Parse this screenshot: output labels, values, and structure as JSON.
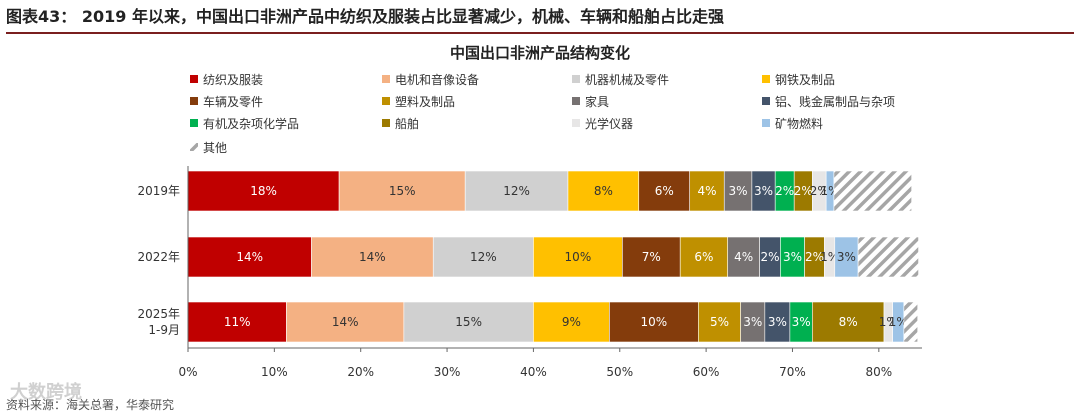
{
  "header": {
    "title": "图表43：  2019 年以来，中国出口非洲产品中纺织及服装占比显著减少，机械、车辆和船舶占比走强",
    "source": "资料来源：海关总署，华泰研究",
    "watermark": "大数跨境"
  },
  "chart_data": {
    "type": "bar",
    "orientation": "horizontal",
    "stacked": true,
    "title": "中国出口非洲产品结构变化",
    "categories": [
      "2019年",
      "2022年",
      "2025年 1-9月"
    ],
    "category_lines": [
      [
        "2019年"
      ],
      [
        "2022年"
      ],
      [
        "2025年",
        "1-9月"
      ]
    ],
    "xlim": [
      0,
      85
    ],
    "xticks": [
      0,
      10,
      20,
      30,
      40,
      50,
      60,
      70,
      80
    ],
    "xtick_labels": [
      "0%",
      "10%",
      "20%",
      "30%",
      "40%",
      "50%",
      "60%",
      "70%",
      "80%"
    ],
    "grid": false,
    "legend_position": "top",
    "series": [
      {
        "name": "纺织及服装",
        "color": "#c00000",
        "label_color": "#ffffff",
        "values": [
          17.5,
          14.3,
          11.4
        ],
        "labels": [
          "18%",
          "14%",
          "11%"
        ]
      },
      {
        "name": "电机和音像设备",
        "color": "#f4b183",
        "label_color": "#333333",
        "values": [
          14.6,
          14.1,
          13.6
        ],
        "labels": [
          "15%",
          "14%",
          "14%"
        ]
      },
      {
        "name": "机器机械及零件",
        "color": "#d0d0d0",
        "label_color": "#333333",
        "values": [
          11.9,
          11.6,
          15.0
        ],
        "labels": [
          "12%",
          "12%",
          "15%"
        ]
      },
      {
        "name": "钢铁及制品",
        "color": "#ffc000",
        "label_color": "#333333",
        "values": [
          8.2,
          10.3,
          8.8
        ],
        "labels": [
          "8%",
          "10%",
          "9%"
        ]
      },
      {
        "name": "车辆及零件",
        "color": "#843c0c",
        "label_color": "#ffffff",
        "values": [
          5.9,
          6.7,
          10.3
        ],
        "labels": [
          "6%",
          "7%",
          "10%"
        ]
      },
      {
        "name": "塑料及制品",
        "color": "#bf9000",
        "label_color": "#ffffff",
        "values": [
          4.0,
          5.5,
          4.9
        ],
        "labels": [
          "4%",
          "6%",
          "5%"
        ]
      },
      {
        "name": "家具",
        "color": "#767171",
        "label_color": "#ffffff",
        "values": [
          3.2,
          3.7,
          2.8
        ],
        "labels": [
          "3%",
          "4%",
          "3%"
        ]
      },
      {
        "name": "铝、贱金属制品与杂项",
        "color": "#44546a",
        "label_color": "#ffffff",
        "values": [
          2.7,
          2.4,
          2.9
        ],
        "labels": [
          "3%",
          "2%",
          "3%"
        ]
      },
      {
        "name": "有机及杂项化学品",
        "color": "#00b050",
        "label_color": "#ffffff",
        "values": [
          2.2,
          2.8,
          2.6
        ],
        "labels": [
          "2%",
          "3%",
          "3%"
        ]
      },
      {
        "name": "船舶",
        "color": "#9c7a00",
        "label_color": "#ffffff",
        "values": [
          2.1,
          2.3,
          8.3
        ],
        "labels": [
          "2%",
          "2%",
          "8%"
        ]
      },
      {
        "name": "光学仪器",
        "color": "#e7e6e6",
        "label_color": "#333333",
        "values": [
          1.6,
          1.2,
          1.0
        ],
        "labels": [
          "2%",
          "1%",
          "1%"
        ]
      },
      {
        "name": "矿物燃料",
        "color": "#9dc3e6",
        "label_color": "#333333",
        "values": [
          0.9,
          2.7,
          1.3
        ],
        "labels": [
          "1%",
          "3%",
          "1%"
        ]
      },
      {
        "name": "其他",
        "color": "hatch",
        "label_color": "#333333",
        "values": [
          9.0,
          7.0,
          1.6
        ],
        "labels": [
          "",
          "",
          ""
        ]
      }
    ]
  }
}
